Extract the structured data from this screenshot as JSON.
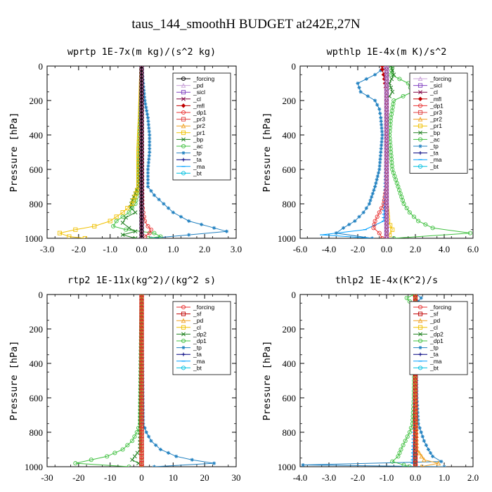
{
  "figure": {
    "title": "taus_144_smoothH  BUDGET at242E,27N"
  },
  "chart_data": [
    {
      "type": "line",
      "title": "wprtp  1E-7x(m kg)/(s^2 kg)",
      "ylabel": "Pressure [hPa]",
      "xlim": [
        -3.0,
        3.0
      ],
      "ylim": [
        1000,
        0
      ],
      "xticks": [
        "-3.0",
        "-2.0",
        "-1.0",
        "0.0",
        "1.0",
        "2.0",
        "3.0"
      ],
      "yticks": [
        "0",
        "200",
        "400",
        "600",
        "800",
        "1000"
      ],
      "grid": false,
      "legend_position": "top-right",
      "series": [
        {
          "name": "_forcing",
          "color": "#000000",
          "marker": "circle",
          "y": [
            0,
            200,
            400,
            600,
            800,
            1000
          ],
          "x": [
            0,
            0,
            0,
            0,
            0,
            0
          ]
        },
        {
          "name": "_pd",
          "color": "#c8a0d8",
          "marker": "triangle",
          "y": [
            0,
            500,
            1000
          ],
          "x": [
            0,
            0,
            0
          ]
        },
        {
          "name": "_sicl",
          "color": "#8040c0",
          "marker": "square",
          "y": [
            0,
            500,
            1000
          ],
          "x": [
            0,
            0,
            0
          ]
        },
        {
          "name": "_cl",
          "color": "#800040",
          "marker": "x",
          "y": [
            0,
            500,
            1000
          ],
          "x": [
            0,
            0,
            0
          ]
        },
        {
          "name": "_mfl",
          "color": "#c00000",
          "marker": "diamond",
          "y": [
            0,
            500,
            1000
          ],
          "x": [
            0,
            0,
            0
          ]
        },
        {
          "name": "_dp1",
          "color": "#e83030",
          "marker": "circle",
          "y": [
            0,
            800,
            850,
            900,
            930,
            950,
            970,
            990,
            1000
          ],
          "x": [
            0,
            0.02,
            0.05,
            0.1,
            0.2,
            0.3,
            0.25,
            0.1,
            0
          ]
        },
        {
          "name": "_pr3",
          "color": "#e04040",
          "marker": "square",
          "y": [
            0,
            500,
            1000
          ],
          "x": [
            0,
            0,
            0
          ]
        },
        {
          "name": "_pr2",
          "color": "#f0a020",
          "marker": "triangle",
          "y": [
            0,
            500,
            1000
          ],
          "x": [
            0,
            0,
            0
          ]
        },
        {
          "name": "_pr1",
          "color": "#f0c000",
          "marker": "square",
          "y": [
            0,
            300,
            500,
            700,
            800,
            850,
            900,
            930,
            950,
            970,
            990,
            1000
          ],
          "x": [
            0,
            -0.05,
            -0.1,
            -0.1,
            -0.3,
            -0.6,
            -1.0,
            -1.5,
            -2.1,
            -2.6,
            -2.3,
            -1.8
          ]
        },
        {
          "name": "_bp",
          "color": "#208020",
          "marker": "x",
          "y": [
            0,
            700,
            780,
            820,
            850,
            880,
            910,
            940,
            960,
            980,
            1000
          ],
          "x": [
            0,
            -0.1,
            -0.3,
            -0.35,
            -0.2,
            -0.5,
            -0.6,
            -0.4,
            -0.2,
            -0.6,
            -0.2
          ]
        },
        {
          "name": "_ac",
          "color": "#40c040",
          "marker": "circle",
          "y": [
            0,
            700,
            800,
            850,
            900,
            930,
            950,
            970,
            990,
            1000
          ],
          "x": [
            0,
            -0.1,
            -0.2,
            -0.4,
            -0.8,
            -0.9,
            -0.5,
            0.4,
            0.6,
            0.2
          ]
        },
        {
          "name": "_tp",
          "color": "#2080c0",
          "marker": "star",
          "y": [
            0,
            100,
            200,
            300,
            400,
            500,
            600,
            700,
            750,
            800,
            850,
            900,
            940,
            960,
            980,
            1000
          ],
          "x": [
            0,
            0.05,
            0.1,
            0.2,
            0.25,
            0.25,
            0.2,
            0.2,
            0.4,
            0.7,
            1.0,
            1.5,
            2.3,
            2.7,
            1.5,
            0.3
          ]
        },
        {
          "name": "_ta",
          "color": "#000080",
          "marker": "plus",
          "y": [
            0,
            500,
            1000
          ],
          "x": [
            0,
            0,
            0
          ]
        },
        {
          "name": "_ma",
          "color": "#00a0ff",
          "marker": "dash",
          "y": [
            0,
            500,
            1000
          ],
          "x": [
            0,
            0,
            0
          ]
        },
        {
          "name": "_bt",
          "color": "#00c0e0",
          "marker": "circle",
          "y": [
            0,
            500,
            1000
          ],
          "x": [
            0,
            0,
            0
          ]
        }
      ]
    },
    {
      "type": "line",
      "title": "wpthlp  1E-4x(m K)/s^2",
      "ylabel": "Pressure [hPa]",
      "xlim": [
        -6.0,
        6.0
      ],
      "ylim": [
        1000,
        0
      ],
      "xticks": [
        "-6.0",
        "-4.0",
        "-2.0",
        "0.0",
        "2.0",
        "4.0",
        "6.0"
      ],
      "yticks": [
        "0",
        "200",
        "400",
        "600",
        "800",
        "1000"
      ],
      "grid": false,
      "legend_position": "top-right",
      "series": [
        {
          "name": "_forcing",
          "color": "#c8a0d8",
          "marker": "triangle",
          "y": [
            0,
            200,
            400,
            600,
            800,
            1000
          ],
          "x": [
            0,
            0,
            0,
            0,
            0,
            0
          ]
        },
        {
          "name": "_sicl",
          "color": "#8040c0",
          "marker": "square",
          "y": [
            0,
            500,
            1000
          ],
          "x": [
            0,
            0,
            0
          ]
        },
        {
          "name": "_cl",
          "color": "#800040",
          "marker": "x",
          "y": [
            0,
            500,
            1000
          ],
          "x": [
            0,
            0,
            0
          ]
        },
        {
          "name": "_mfl",
          "color": "#c00000",
          "marker": "diamond",
          "y": [
            0,
            20,
            50,
            100,
            150,
            200,
            500,
            1000
          ],
          "x": [
            -0.3,
            -0.3,
            -0.2,
            -0.1,
            0,
            0,
            0,
            0
          ]
        },
        {
          "name": "_dp1",
          "color": "#e83030",
          "marker": "circle",
          "y": [
            0,
            700,
            800,
            850,
            900,
            940,
            970,
            1000
          ],
          "x": [
            0,
            0,
            -0.2,
            -0.5,
            -0.8,
            -0.9,
            -0.5,
            -0.3
          ]
        },
        {
          "name": "_pr3",
          "color": "#e04040",
          "marker": "square",
          "y": [
            0,
            500,
            1000
          ],
          "x": [
            0,
            0,
            0
          ]
        },
        {
          "name": "_pr2",
          "color": "#f0a020",
          "marker": "triangle",
          "y": [
            0,
            500,
            1000
          ],
          "x": [
            0,
            0,
            0
          ]
        },
        {
          "name": "_pr1",
          "color": "#f0c000",
          "marker": "square",
          "y": [
            0,
            800,
            900,
            950,
            980,
            1000
          ],
          "x": [
            0,
            0,
            0.1,
            0.4,
            0.2,
            0
          ]
        },
        {
          "name": "_bp",
          "color": "#208020",
          "marker": "x",
          "y": [
            0,
            50,
            100,
            150,
            200,
            500,
            1000
          ],
          "x": [
            0.3,
            0.5,
            0.2,
            0.4,
            0,
            0,
            0
          ]
        },
        {
          "name": "_ac",
          "color": "#40c040",
          "marker": "circle",
          "y": [
            0,
            50,
            100,
            150,
            200,
            300,
            400,
            500,
            600,
            700,
            800,
            850,
            900,
            940,
            970,
            1000
          ],
          "x": [
            0.4,
            0.3,
            1.5,
            1.8,
            0.5,
            0.3,
            0.2,
            0.3,
            0.4,
            0.8,
            1.2,
            1.6,
            2.2,
            3.2,
            5.8,
            0.5
          ]
        },
        {
          "name": "_tp",
          "color": "#2080c0",
          "marker": "star",
          "y": [
            0,
            50,
            100,
            150,
            200,
            250,
            300,
            400,
            500,
            600,
            700,
            800,
            850,
            900,
            940,
            970,
            1000
          ],
          "x": [
            0,
            -0.8,
            -2.0,
            -1.8,
            -0.8,
            -0.5,
            -0.4,
            -0.3,
            -0.4,
            -0.5,
            -0.8,
            -1.2,
            -1.6,
            -2.2,
            -3.0,
            -3.5,
            -1.0
          ]
        },
        {
          "name": "_ta",
          "color": "#000080",
          "marker": "plus",
          "y": [
            0,
            500,
            1000
          ],
          "x": [
            0,
            0,
            0
          ]
        },
        {
          "name": "_ma",
          "color": "#00a0ff",
          "marker": "dash",
          "y": [
            0,
            500,
            900,
            950,
            980,
            1000
          ],
          "x": [
            0,
            0,
            -0.2,
            -1.5,
            -4.5,
            -1.0
          ]
        },
        {
          "name": "_bt",
          "color": "#00c0e0",
          "marker": "circle",
          "y": [
            0,
            500,
            1000
          ],
          "x": [
            0,
            0,
            0
          ]
        }
      ]
    },
    {
      "type": "line",
      "title": "rtp2  1E-11x(kg^2)/(kg^2 s)",
      "ylabel": "Pressure [hPa]",
      "xlim": [
        -30,
        30
      ],
      "ylim": [
        1000,
        0
      ],
      "xticks": [
        "-30",
        "-20",
        "-10",
        "0",
        "10",
        "20",
        "30"
      ],
      "yticks": [
        "0",
        "200",
        "400",
        "600",
        "800",
        "1000"
      ],
      "grid": false,
      "legend_position": "top-right",
      "series": [
        {
          "name": "_forcing",
          "color": "#e83030",
          "marker": "circle",
          "y": [
            0,
            200,
            400,
            600,
            800,
            1000
          ],
          "x": [
            0,
            0,
            0,
            0,
            0,
            0
          ]
        },
        {
          "name": "_sf",
          "color": "#c00000",
          "marker": "square",
          "y": [
            0,
            500,
            1000
          ],
          "x": [
            0,
            0,
            0
          ]
        },
        {
          "name": "_pd",
          "color": "#f0a020",
          "marker": "triangle",
          "y": [
            0,
            500,
            1000
          ],
          "x": [
            0,
            0,
            0
          ]
        },
        {
          "name": "_cl",
          "color": "#f0c000",
          "marker": "square",
          "y": [
            0,
            500,
            1000
          ],
          "x": [
            0,
            0,
            0
          ]
        },
        {
          "name": "_dp2",
          "color": "#208020",
          "marker": "x",
          "y": [
            0,
            900,
            960,
            980,
            1000
          ],
          "x": [
            0,
            -0.5,
            -3.0,
            -1.0,
            0
          ]
        },
        {
          "name": "_dp1",
          "color": "#40c040",
          "marker": "circle",
          "y": [
            0,
            750,
            800,
            850,
            900,
            940,
            960,
            980,
            1000
          ],
          "x": [
            0,
            -0.5,
            -1.5,
            -3.0,
            -6.0,
            -11.0,
            -16.0,
            -21.0,
            -4.0
          ]
        },
        {
          "name": "_tp",
          "color": "#2080c0",
          "marker": "star",
          "y": [
            0,
            750,
            800,
            850,
            900,
            940,
            960,
            980,
            1000
          ],
          "x": [
            0,
            0.5,
            1.5,
            3.0,
            6.0,
            11.0,
            16.0,
            23.0,
            4.0
          ]
        },
        {
          "name": "_ta",
          "color": "#000080",
          "marker": "plus",
          "y": [
            0,
            500,
            1000
          ],
          "x": [
            0,
            0,
            0
          ]
        },
        {
          "name": "_ma",
          "color": "#00a0ff",
          "marker": "dash",
          "y": [
            0,
            500,
            1000
          ],
          "x": [
            0,
            0,
            0
          ]
        },
        {
          "name": "_bt",
          "color": "#00c0e0",
          "marker": "circle",
          "y": [
            0,
            500,
            1000
          ],
          "x": [
            0,
            0,
            0
          ]
        }
      ]
    },
    {
      "type": "line",
      "title": "thlp2  1E-4x(K^2)/s",
      "ylabel": "Pressure [hPa]",
      "xlim": [
        -4.0,
        2.0
      ],
      "ylim": [
        1000,
        0
      ],
      "xticks": [
        "-4.0",
        "-3.0",
        "-2.0",
        "-1.0",
        "0.0",
        "1.0",
        "2.0"
      ],
      "yticks": [
        "0",
        "200",
        "400",
        "600",
        "800",
        "1000"
      ],
      "grid": false,
      "legend_position": "top-right",
      "series": [
        {
          "name": "_forcing",
          "color": "#e83030",
          "marker": "circle",
          "y": [
            0,
            200,
            400,
            600,
            800,
            1000
          ],
          "x": [
            0,
            0,
            0,
            0,
            0,
            0
          ]
        },
        {
          "name": "_sf",
          "color": "#c00000",
          "marker": "square",
          "y": [
            0,
            500,
            1000
          ],
          "x": [
            0,
            0,
            0
          ]
        },
        {
          "name": "_pd",
          "color": "#f0a020",
          "marker": "triangle",
          "y": [
            0,
            500,
            900,
            960,
            980,
            1000
          ],
          "x": [
            0,
            0,
            0.05,
            0.3,
            0.8,
            0.2
          ]
        },
        {
          "name": "_cl",
          "color": "#f0c000",
          "marker": "square",
          "y": [
            0,
            500,
            1000
          ],
          "x": [
            0,
            0,
            0
          ]
        },
        {
          "name": "_dp2",
          "color": "#208020",
          "marker": "x",
          "y": [
            0,
            500,
            1000
          ],
          "x": [
            0,
            0,
            0
          ]
        },
        {
          "name": "_dp1",
          "color": "#40c040",
          "marker": "circle",
          "y": [
            0,
            20,
            40,
            60,
            100,
            200,
            400,
            600,
            750,
            800,
            850,
            900,
            940,
            970,
            990,
            1000
          ],
          "x": [
            -0.05,
            -0.3,
            -0.2,
            -0.1,
            -0.05,
            -0.03,
            -0.03,
            -0.05,
            -0.1,
            -0.2,
            -0.35,
            -0.5,
            -0.6,
            -0.8,
            -0.4,
            -0.2
          ]
        },
        {
          "name": "_tp",
          "color": "#2080c0",
          "marker": "star",
          "y": [
            0,
            20,
            40,
            100,
            200,
            400,
            600,
            750,
            800,
            850,
            900,
            940,
            970,
            990,
            1000
          ],
          "x": [
            0.05,
            0.2,
            0.1,
            0.05,
            0.03,
            0.03,
            0.05,
            0.1,
            0.2,
            0.3,
            0.45,
            0.6,
            0.9,
            -3.9,
            1.0
          ]
        },
        {
          "name": "_ta",
          "color": "#000080",
          "marker": "plus",
          "y": [
            0,
            500,
            1000
          ],
          "x": [
            0,
            0,
            0
          ]
        },
        {
          "name": "_ma",
          "color": "#00a0ff",
          "marker": "dash",
          "y": [
            0,
            500,
            980,
            1000
          ],
          "x": [
            0,
            0,
            -0.1,
            0
          ]
        },
        {
          "name": "_bt",
          "color": "#00c0e0",
          "marker": "circle",
          "y": [
            0,
            500,
            1000
          ],
          "x": [
            0,
            0,
            0
          ]
        }
      ]
    }
  ]
}
